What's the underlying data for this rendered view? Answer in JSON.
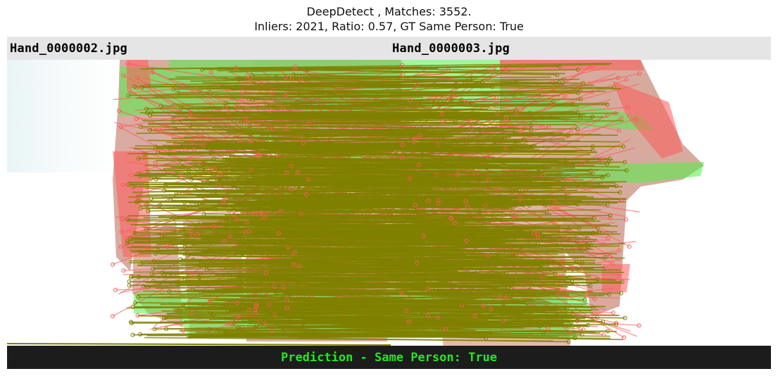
{
  "figure": {
    "title_line1": "DeepDetect , Matches: 3552.",
    "title_line2": "Inliers: 2021, Ratio: 0.57, GT Same Person: True",
    "left_image_label": "Hand_0000002.jpg",
    "right_image_label": "Hand_0000003.jpg",
    "prediction_text": "Prediction - Same Person: True"
  },
  "colors": {
    "inlier": "#808000",
    "outlier": "#ff5a5a",
    "keypoint_green": "#52f04a",
    "prediction_text": "#22e81e",
    "label_bar": "#e5e5e5",
    "prediction_bar": "#1c1c1c"
  }
}
